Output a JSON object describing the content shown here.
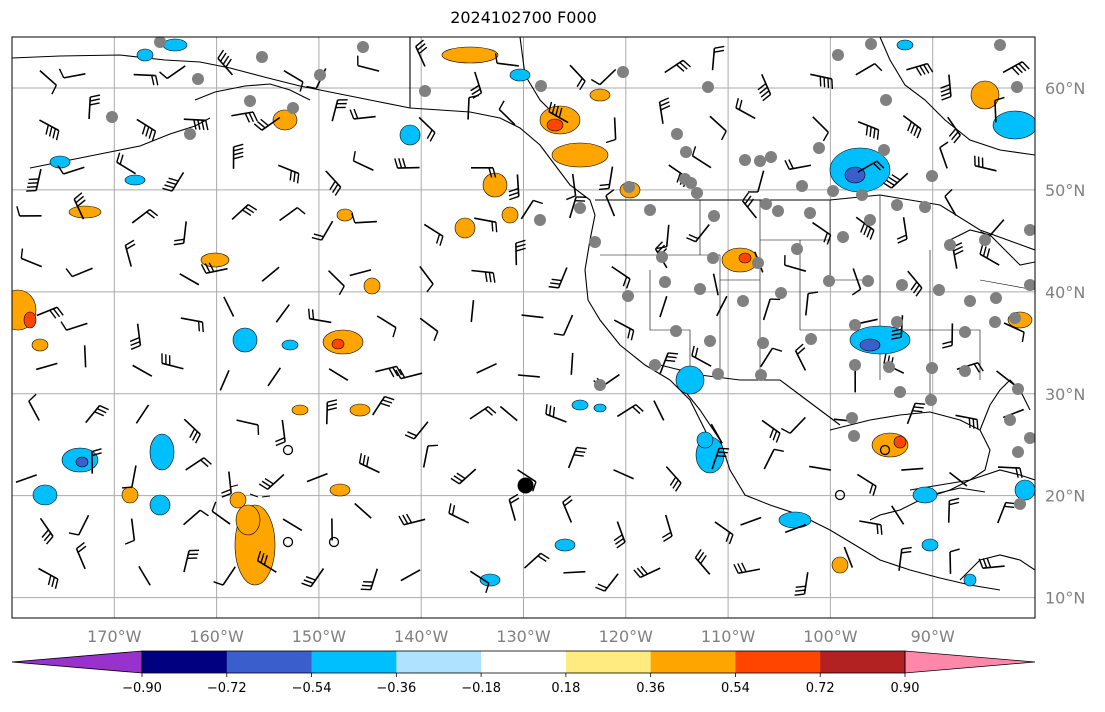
{
  "title": "2024102700 F000",
  "map": {
    "lon_range": [
      -180,
      -80
    ],
    "lat_range": [
      8,
      65
    ],
    "lat_labels": [
      {
        "lat": 60,
        "text": "60°N"
      },
      {
        "lat": 50,
        "text": "50°N"
      },
      {
        "lat": 40,
        "text": "40°N"
      },
      {
        "lat": 30,
        "text": "30°N"
      },
      {
        "lat": 20,
        "text": "20°N"
      },
      {
        "lat": 10,
        "text": "10°N"
      }
    ],
    "lon_labels": [
      {
        "lon": -170,
        "text": "170°W"
      },
      {
        "lon": -160,
        "text": "160°W"
      },
      {
        "lon": -150,
        "text": "150°W"
      },
      {
        "lon": -140,
        "text": "140°W"
      },
      {
        "lon": -130,
        "text": "130°W"
      },
      {
        "lon": -120,
        "text": "120°W"
      },
      {
        "lon": -110,
        "text": "110°W"
      },
      {
        "lon": -100,
        "text": "100°W"
      },
      {
        "lon": -90,
        "text": "90°W"
      }
    ],
    "grid": true,
    "cyclone_marker": {
      "lon": -129.8,
      "lat": 21
    }
  },
  "colorbar": {
    "colors": [
      "#9932cc",
      "#000080",
      "#3a5fcd",
      "#00bfff",
      "#aee2ff",
      "#ffffff",
      "#ffeb80",
      "#ffa500",
      "#ff4500",
      "#b22222",
      "#ff88aa"
    ],
    "tick_labels": [
      "−0.90",
      "−0.72",
      "−0.54",
      "−0.36",
      "−0.18",
      "0.18",
      "0.36",
      "0.54",
      "0.72",
      "0.90"
    ]
  }
}
